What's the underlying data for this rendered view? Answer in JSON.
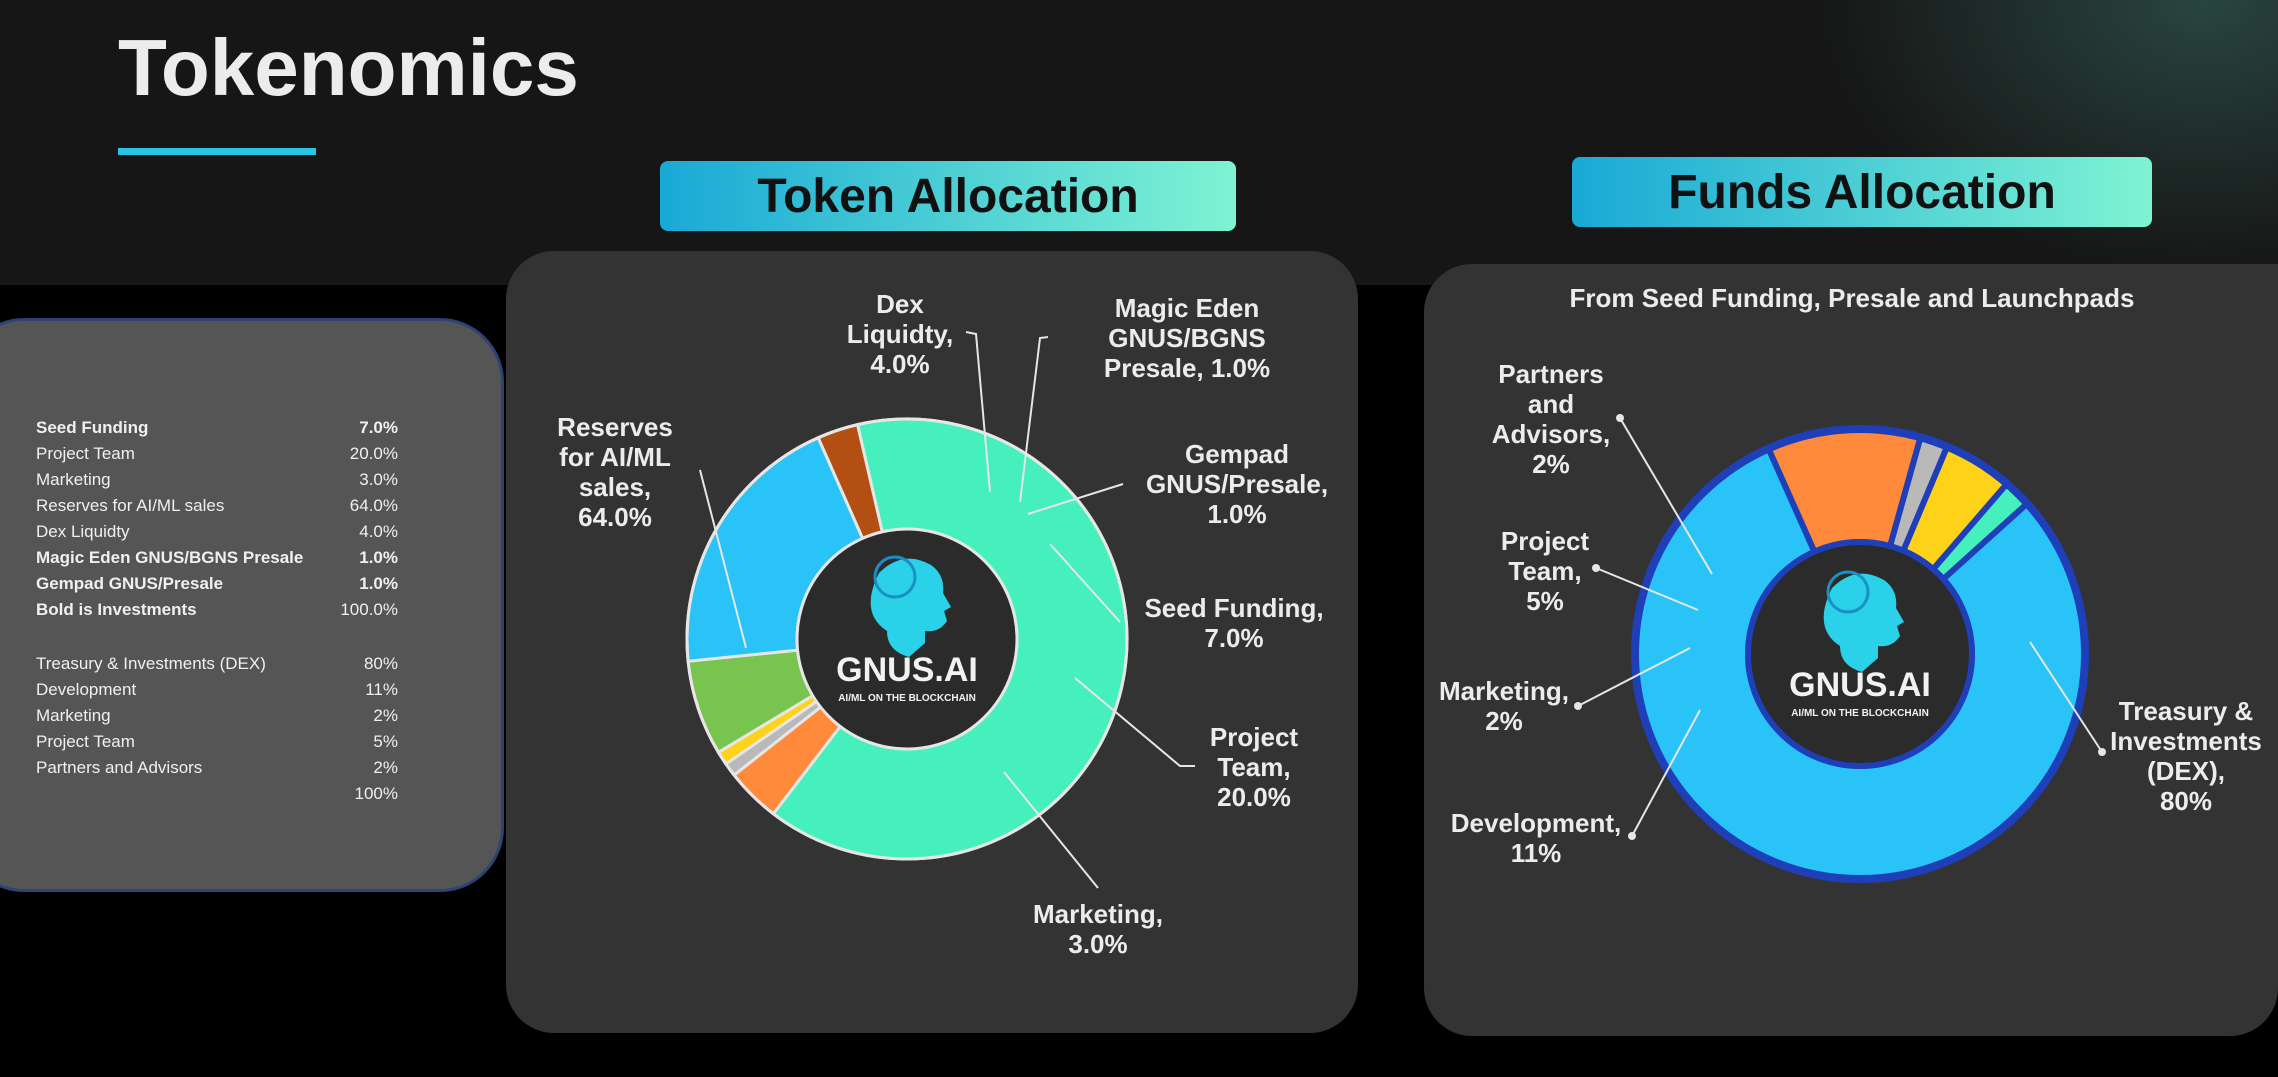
{
  "title": "Tokenomics",
  "table": {
    "token_rows": [
      {
        "label": "Seed Funding",
        "value": "7.0%",
        "bold": true
      },
      {
        "label": "Project Team",
        "value": "20.0%",
        "bold": false
      },
      {
        "label": "Marketing",
        "value": "3.0%",
        "bold": false
      },
      {
        "label": "Reserves for AI/ML sales",
        "value": "64.0%",
        "bold": false
      },
      {
        "label": "Dex Liquidty",
        "value": "4.0%",
        "bold": false
      },
      {
        "label": "Magic Eden GNUS/BGNS Presale",
        "value": "1.0%",
        "bold": true
      },
      {
        "label": "Gempad GNUS/Presale",
        "value": "1.0%",
        "bold": true
      },
      {
        "label": "Bold is Investments",
        "value": "100.0%",
        "bold": true,
        "value_bold": false
      }
    ],
    "funds_rows": [
      {
        "label": "Treasury & Investments (DEX)",
        "value": "80%"
      },
      {
        "label": "Development",
        "value": "11%"
      },
      {
        "label": "Marketing",
        "value": "2%"
      },
      {
        "label": "Project Team",
        "value": "5%"
      },
      {
        "label": "Partners and Advisors",
        "value": "2%"
      },
      {
        "label": "",
        "value": "100%"
      }
    ]
  },
  "logo": {
    "brand": "GNUS.AI",
    "tagline": "AI/ML ON THE BLOCKCHAIN"
  },
  "chart_data": [
    {
      "type": "pie",
      "title": "Token Allocation",
      "categories": [
        "Reserves for AI/ML sales",
        "Dex Liquidty",
        "Magic Eden GNUS/BGNS Presale",
        "Gempad GNUS/Presale",
        "Seed Funding",
        "Project Team",
        "Marketing"
      ],
      "values": [
        64.0,
        4.0,
        1.0,
        1.0,
        7.0,
        20.0,
        3.0
      ],
      "colors": [
        "#45f0bd",
        "#ff8a3c",
        "#b9b9b9",
        "#ffd21a",
        "#79c34f",
        "#29c3f8",
        "#b34f12"
      ],
      "labels": [
        [
          "Reserves",
          "for AI/ML",
          "sales,",
          "64.0%"
        ],
        [
          "Dex",
          "Liquidty,",
          "4.0%"
        ],
        [
          "Magic Eden",
          "GNUS/BGNS",
          "Presale, 1.0%"
        ],
        [
          "Gempad",
          "GNUS/Presale,",
          "1.0%"
        ],
        [
          "Seed Funding,",
          "7.0%"
        ],
        [
          "Project",
          "Team,",
          "20.0%"
        ],
        [
          "Marketing,",
          "3.0%"
        ]
      ]
    },
    {
      "type": "pie",
      "title": "Funds Allocation",
      "subtitle": "From Seed Funding, Presale and Launchpads",
      "categories": [
        "Treasury & Investments (DEX)",
        "Development",
        "Marketing",
        "Project Team",
        "Partners and Advisors"
      ],
      "values": [
        80,
        11,
        2,
        5,
        2
      ],
      "colors": [
        "#29c3f8",
        "#ff8a3c",
        "#b9b9b9",
        "#ffd21a",
        "#45f0bd"
      ],
      "labels": [
        [
          "Treasury &",
          "Investments",
          "(DEX),",
          "80%"
        ],
        [
          "Development,",
          "11%"
        ],
        [
          "Marketing,",
          "2%"
        ],
        [
          "Project",
          "Team,",
          "5%"
        ],
        [
          "Partners",
          "and",
          "Advisors,",
          "2%"
        ]
      ]
    }
  ]
}
